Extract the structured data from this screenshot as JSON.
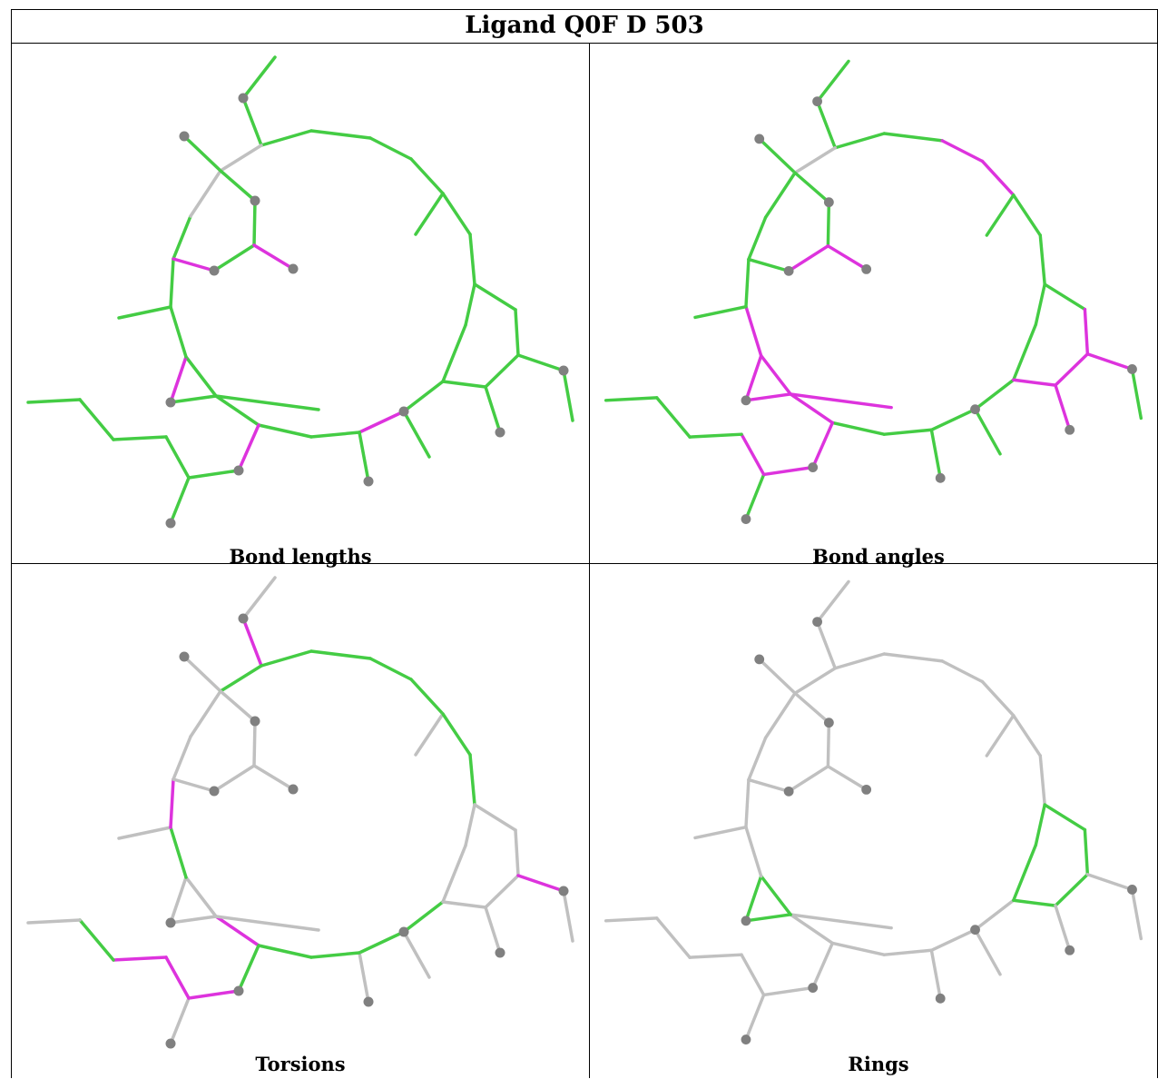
{
  "title": "Ligand Q0F D 503",
  "panels": [
    {
      "caption": "Bond lengths"
    },
    {
      "caption": "Bond angles"
    },
    {
      "caption": "Torsions"
    },
    {
      "caption": "Rings"
    }
  ],
  "colors": {
    "good": "#44cc44",
    "outlier": "#dd33dd",
    "neutral": "#c0c0c0",
    "atom": "#808080",
    "border": "#000000"
  }
}
